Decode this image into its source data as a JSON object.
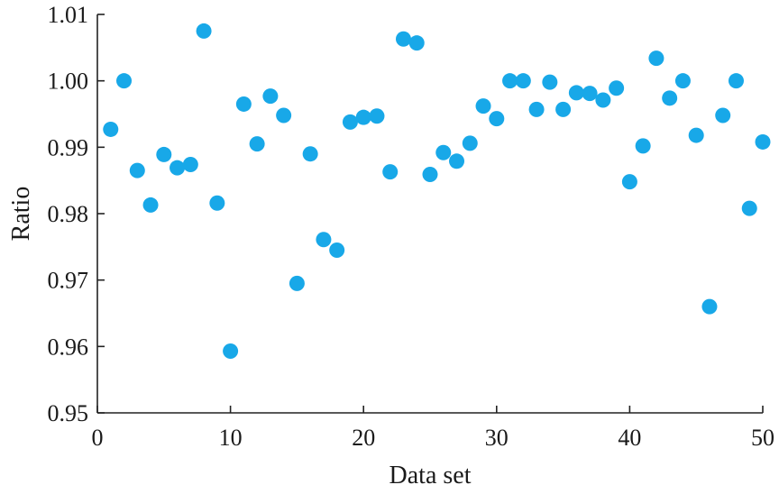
{
  "chart_data": {
    "type": "scatter",
    "title": "",
    "xlabel": "Data set",
    "ylabel": "Ratio",
    "xlim": [
      0,
      50
    ],
    "ylim": [
      0.95,
      1.01
    ],
    "xticks": [
      0,
      10,
      20,
      30,
      40,
      50
    ],
    "xtick_labels": [
      "0",
      "10",
      "20",
      "30",
      "40",
      "50"
    ],
    "yticks": [
      0.95,
      0.96,
      0.97,
      0.98,
      0.99,
      1.0,
      1.01
    ],
    "ytick_labels": [
      "0.95",
      "0.96",
      "0.97",
      "0.98",
      "0.99",
      "1.00",
      "1.01"
    ],
    "grid": false,
    "marker_color": "#18a8e8",
    "series": [
      {
        "x": [
          1,
          2,
          3,
          4,
          5,
          6,
          7,
          8,
          9,
          10,
          11,
          12,
          13,
          14,
          15,
          16,
          17,
          18,
          19,
          20,
          21,
          22,
          23,
          24,
          25,
          26,
          27,
          28,
          29,
          30,
          31,
          32,
          33,
          34,
          35,
          36,
          37,
          38,
          39,
          40,
          41,
          42,
          43,
          44,
          45,
          46,
          47,
          48,
          49,
          50
        ],
        "y": [
          0.9927,
          1.0,
          0.9865,
          0.9813,
          0.9889,
          0.9869,
          0.9874,
          1.0075,
          0.9816,
          0.9593,
          0.9965,
          0.9905,
          0.9977,
          0.9948,
          0.9695,
          0.989,
          0.9761,
          0.9745,
          0.9938,
          0.9945,
          0.9947,
          0.9863,
          1.0063,
          1.0057,
          0.9859,
          0.9892,
          0.9879,
          0.9906,
          0.9962,
          0.9943,
          1.0,
          1.0,
          0.9957,
          0.9998,
          0.9957,
          0.9982,
          0.9981,
          0.9971,
          0.9989,
          0.9848,
          0.9902,
          1.0034,
          0.9974,
          1.0,
          0.9918,
          0.966,
          0.9948,
          1.0,
          0.9808,
          0.9908
        ]
      }
    ]
  }
}
